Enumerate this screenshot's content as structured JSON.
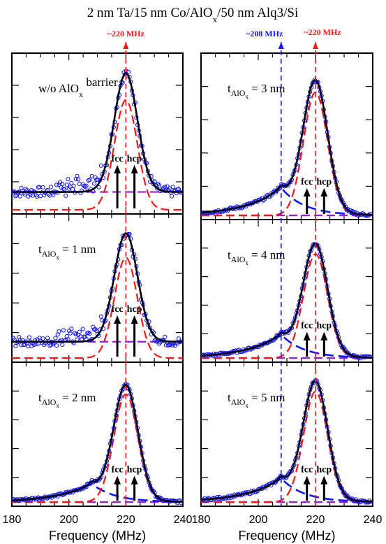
{
  "title_parts": [
    "2 nm Ta/15 nm Co/AlO",
    "x",
    "/50 nm Alq3/Si"
  ],
  "xlabel": "Frequency (MHz)",
  "xticks": [
    "180",
    "200",
    "220",
    "240"
  ],
  "colors": {
    "data": "#1414ff",
    "fit_total": "#000000",
    "peak": "#ff1414",
    "shoulder": "#1414ff",
    "baseline": "#9a1fd1",
    "marker_red": "#ff1414",
    "marker_blue": "#1414ff"
  },
  "marker_left": {
    "text": "~220 MHz",
    "freq": 220
  },
  "marker_right_red": {
    "text": "~220 MHz",
    "freq": 220
  },
  "marker_right_blue": {
    "text": "~208 MHz",
    "freq": 208
  },
  "arrow_labels": {
    "fcc": "fcc",
    "hcp": "hcp"
  },
  "panels": [
    {
      "id": "w/o",
      "label_main": "w/o AlO",
      "label_sub": "x",
      "label_tail": " barrier",
      "t_label": false
    },
    {
      "id": "1nm",
      "label_main": "t",
      "label_sub": "AlO",
      "label_subsub": "x",
      "label_tail": " = 1 nm",
      "t_label": true
    },
    {
      "id": "2nm",
      "label_main": "t",
      "label_sub": "AlO",
      "label_subsub": "x",
      "label_tail": " = 2 nm",
      "t_label": true
    },
    {
      "id": "3nm",
      "label_main": "t",
      "label_sub": "AlO",
      "label_subsub": "x",
      "label_tail": " = 3 nm",
      "t_label": true
    },
    {
      "id": "4nm",
      "label_main": "t",
      "label_sub": "AlO",
      "label_subsub": "x",
      "label_tail": " = 4 nm",
      "t_label": true
    },
    {
      "id": "5nm",
      "label_main": "t",
      "label_sub": "AlO",
      "label_subsub": "x",
      "label_tail": " = 5 nm",
      "t_label": true
    }
  ],
  "chart_data": {
    "type": "line",
    "xlim": [
      180,
      240
    ],
    "ylabel": "",
    "series_description": [
      "data",
      "fit_total",
      "peak_220",
      "shoulder_208",
      "baseline"
    ],
    "panels": [
      {
        "label": "w/o AlOx barrier",
        "peak_center": 220,
        "peak_sigma": 4.0,
        "peak_amp": 0.74,
        "shoulder_amp": 0.0,
        "baseline": 0.12,
        "data_max": 0.92,
        "arrows": {
          "fcc": 217,
          "hcp": 223
        }
      },
      {
        "label": "tAlOx = 1 nm",
        "peak_center": 220,
        "peak_sigma": 4.0,
        "peak_amp": 0.74,
        "shoulder_amp": 0.0,
        "baseline": 0.12,
        "data_max": 0.95,
        "arrows": {
          "fcc": 217,
          "hcp": 223
        }
      },
      {
        "label": "tAlOx = 2 nm",
        "peak_center": 220,
        "peak_sigma": 4.2,
        "peak_amp": 0.82,
        "shoulder_amp": 0.14,
        "baseline": 0.0,
        "data_max": 0.98,
        "arrows": {
          "fcc": 217,
          "hcp": 223
        }
      },
      {
        "label": "tAlOx = 3 nm",
        "peak_center": 220,
        "peak_sigma": 4.2,
        "peak_amp": 0.8,
        "shoulder_amp": 0.18,
        "baseline": 0.0,
        "data_max": 0.96,
        "arrows": {
          "fcc": 217,
          "hcp": 223
        }
      },
      {
        "label": "tAlOx = 4 nm",
        "peak_center": 220,
        "peak_sigma": 4.2,
        "peak_amp": 0.8,
        "shoulder_amp": 0.18,
        "baseline": 0.0,
        "data_max": 0.98,
        "arrows": {
          "fcc": 217,
          "hcp": 223
        }
      },
      {
        "label": "tAlOx = 5 nm",
        "peak_center": 220,
        "peak_sigma": 4.2,
        "peak_amp": 0.84,
        "shoulder_amp": 0.18,
        "baseline": 0.0,
        "data_max": 0.98,
        "arrows": {
          "fcc": 217,
          "hcp": 223
        }
      }
    ]
  }
}
